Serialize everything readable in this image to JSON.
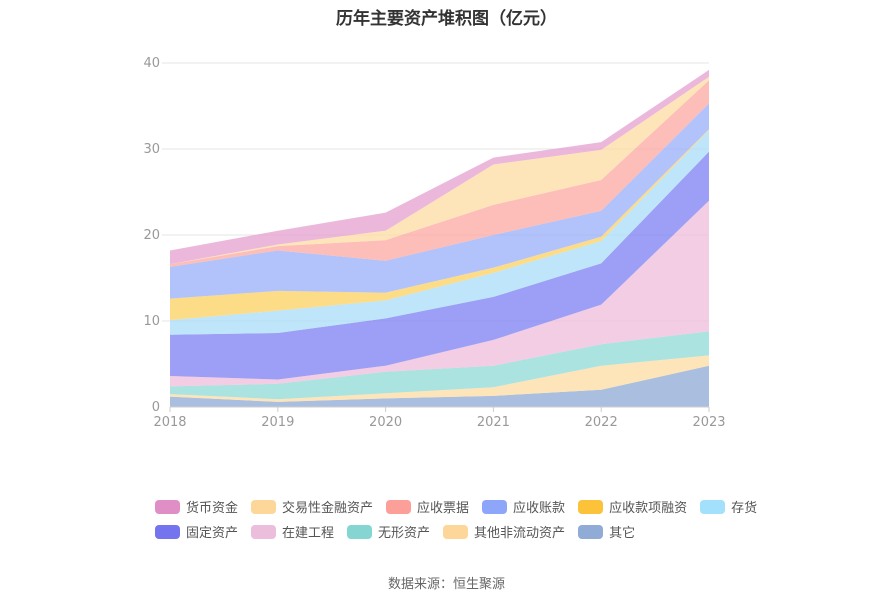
{
  "chart_data": {
    "type": "area",
    "stacked": true,
    "title": "历年主要资产堆积图（亿元）",
    "categories": [
      "2018",
      "2019",
      "2020",
      "2021",
      "2022",
      "2023"
    ],
    "ylim": [
      0,
      40
    ],
    "yticks": [
      0,
      10,
      20,
      30,
      40
    ],
    "grid": true,
    "legend_position": "bottom",
    "series": [
      {
        "name": "其它",
        "color": "#8eaad6",
        "values": [
          1.2,
          0.6,
          1.0,
          1.3,
          2.0,
          4.8
        ]
      },
      {
        "name": "其他非流动资产",
        "color": "#fddca2",
        "values": [
          0.3,
          0.3,
          0.6,
          1.0,
          2.8,
          1.2
        ]
      },
      {
        "name": "无形资产",
        "color": "#8fd9d6",
        "values": [
          0.9,
          1.8,
          2.5,
          2.5,
          2.5,
          2.8
        ]
      },
      {
        "name": "在建工程",
        "color": "#edbcdb",
        "values": [
          1.2,
          0.5,
          0.7,
          3.0,
          4.6,
          15.2
        ]
      },
      {
        "name": "固定资产",
        "color": "#7b7ff2",
        "values": [
          4.8,
          5.4,
          5.5,
          5.0,
          4.8,
          5.7
        ]
      },
      {
        "name": "存货",
        "color": "#a8dcf8",
        "values": [
          1.7,
          2.6,
          2.1,
          2.8,
          2.6,
          2.5
        ]
      },
      {
        "name": "应收款项融资",
        "color": "#fcd060",
        "values": [
          2.5,
          2.3,
          0.9,
          0.6,
          0.5,
          0.1
        ]
      },
      {
        "name": "应收账款",
        "color": "#98adfa",
        "values": [
          3.7,
          4.7,
          3.7,
          3.8,
          3.0,
          3.0
        ]
      },
      {
        "name": "应收票据",
        "color": "#fca8a2",
        "values": [
          0.3,
          0.5,
          2.4,
          3.5,
          3.6,
          2.7
        ]
      },
      {
        "name": "交易性金融资产",
        "color": "#fddca2",
        "values": [
          0.0,
          0.2,
          1.1,
          4.7,
          3.5,
          0.4
        ]
      },
      {
        "name": "货币资金",
        "color": "#e4a0cf",
        "values": [
          1.6,
          1.6,
          2.1,
          0.8,
          0.9,
          0.8
        ]
      }
    ]
  },
  "legend": {
    "row1": [
      {
        "name": "货币资金",
        "color": "#e08fc6"
      },
      {
        "name": "交易性金融资产",
        "color": "#fdd79a"
      },
      {
        "name": "应收票据",
        "color": "#fb9f98"
      },
      {
        "name": "应收账款",
        "color": "#8ea6f9"
      },
      {
        "name": "应收款项融资",
        "color": "#fcc23a"
      },
      {
        "name": "存货",
        "color": "#a2e0fb"
      }
    ],
    "row2": [
      {
        "name": "固定资产",
        "color": "#7474ef"
      },
      {
        "name": "在建工程",
        "color": "#ebbedc"
      },
      {
        "name": "无形资产",
        "color": "#85d6d3"
      },
      {
        "name": "其他非流动资产",
        "color": "#fdd79a"
      },
      {
        "name": "其它",
        "color": "#8fabd6"
      }
    ]
  },
  "source": "数据来源：恒生聚源"
}
